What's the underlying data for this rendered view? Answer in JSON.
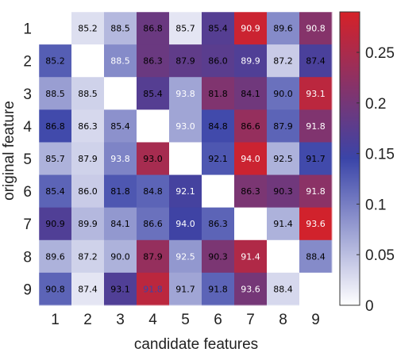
{
  "chart_data": {
    "type": "heatmap",
    "title": "",
    "xlabel": "candidate features",
    "ylabel": "original feature",
    "x_categories": [
      "1",
      "2",
      "3",
      "4",
      "5",
      "6",
      "7",
      "8",
      "9"
    ],
    "y_categories": [
      "1",
      "2",
      "3",
      "4",
      "5",
      "6",
      "7",
      "8",
      "9"
    ],
    "colorbar": {
      "range": [
        0,
        0.29
      ],
      "ticks": [
        0,
        0.05,
        0.1,
        0.15,
        0.2,
        0.25
      ],
      "tick_labels": [
        "0",
        "0.05",
        "0.1",
        "0.15",
        "0.2",
        "0.25"
      ],
      "colormap": [
        "#ffffff",
        "#3a44a8",
        "#d62128"
      ]
    },
    "values": [
      [
        null,
        0.025,
        0.055,
        0.19,
        0.02,
        0.17,
        0.28,
        0.09,
        0.215
      ],
      [
        0.125,
        null,
        0.09,
        0.19,
        0.18,
        0.175,
        0.165,
        0.04,
        0.16
      ],
      [
        0.075,
        0.035,
        null,
        0.17,
        0.07,
        0.21,
        0.195,
        0.11,
        0.265
      ],
      [
        0.14,
        0.03,
        0.085,
        null,
        0.07,
        0.14,
        0.23,
        0.12,
        0.21
      ],
      [
        0.06,
        0.035,
        0.095,
        0.245,
        null,
        0.13,
        0.28,
        0.06,
        0.14
      ],
      [
        0.12,
        0.04,
        0.13,
        0.12,
        0.155,
        null,
        0.205,
        0.195,
        0.22
      ],
      [
        0.165,
        0.055,
        0.08,
        0.11,
        0.15,
        0.12,
        null,
        0.06,
        0.285
      ],
      [
        0.06,
        0.035,
        0.06,
        0.23,
        0.08,
        0.205,
        0.255,
        null,
        0.09
      ],
      [
        0.12,
        0.02,
        0.165,
        0.265,
        0.07,
        0.12,
        0.2,
        0.03,
        null
      ]
    ],
    "annotations": [
      [
        null,
        "85.2",
        "88.5",
        "86.8",
        "85.7",
        "85.4",
        "90.9",
        "89.6",
        "90.8"
      ],
      [
        "85.2",
        null,
        "88.5",
        "86.3",
        "87.9",
        "86.0",
        "89.9",
        "87.2",
        "87.4"
      ],
      [
        "88.5",
        "88.5",
        null,
        "85.4",
        "93.8",
        "81.8",
        "84.1",
        "90.0",
        "93.1"
      ],
      [
        "86.8",
        "86.3",
        "85.4",
        null,
        "93.0",
        "84.8",
        "86.6",
        "87.9",
        "91.8"
      ],
      [
        "85.7",
        "87.9",
        "93.8",
        "93.0",
        null,
        "92.1",
        "94.0",
        "92.5",
        "91.7"
      ],
      [
        "85.4",
        "86.0",
        "81.8",
        "84.8",
        "92.1",
        null,
        "86.3",
        "90.3",
        "91.8"
      ],
      [
        "90.9",
        "89.9",
        "84.1",
        "86.6",
        "94.0",
        "86.3",
        null,
        "91.4",
        "93.6"
      ],
      [
        "89.6",
        "87.2",
        "90.0",
        "87.9",
        "92.5",
        "90.3",
        "91.4",
        null,
        "88.4"
      ],
      [
        "90.8",
        "87.4",
        "93.1",
        "91.8",
        "91.7",
        "91.8",
        "93.6",
        "88.4",
        null
      ]
    ],
    "annotation_colors": [
      [
        null,
        "#000000",
        "#000000",
        "#000000",
        "#000000",
        "#000000",
        "#ffffff",
        "#000000",
        "#ffffff"
      ],
      [
        "#000000",
        null,
        "#ffffff",
        "#000000",
        "#000000",
        "#000000",
        "#ffffff",
        "#000000",
        "#000000"
      ],
      [
        "#000000",
        "#000000",
        null,
        "#000000",
        "#ffffff",
        "#000000",
        "#000000",
        "#000000",
        "#ffffff"
      ],
      [
        "#000000",
        "#000000",
        "#000000",
        null,
        "#ffffff",
        "#000000",
        "#000000",
        "#000000",
        "#ffffff"
      ],
      [
        "#000000",
        "#000000",
        "#ffffff",
        "#000000",
        null,
        "#000000",
        "#ffffff",
        "#000000",
        "#000000"
      ],
      [
        "#000000",
        "#000000",
        "#000000",
        "#000000",
        "#ffffff",
        null,
        "#000000",
        "#000000",
        "#ffffff"
      ],
      [
        "#000000",
        "#000000",
        "#000000",
        "#000000",
        "#ffffff",
        "#000000",
        null,
        "#000000",
        "#ffffff"
      ],
      [
        "#000000",
        "#000000",
        "#000000",
        "#000000",
        "#ffffff",
        "#000000",
        "#ffffff",
        null,
        "#000000"
      ],
      [
        "#000000",
        "#000000",
        "#000000",
        "#3a44a8",
        "#000000",
        "#000000",
        "#ffffff",
        "#000000",
        null
      ]
    ],
    "diagonal_color": "#ffffff",
    "grid": false
  }
}
